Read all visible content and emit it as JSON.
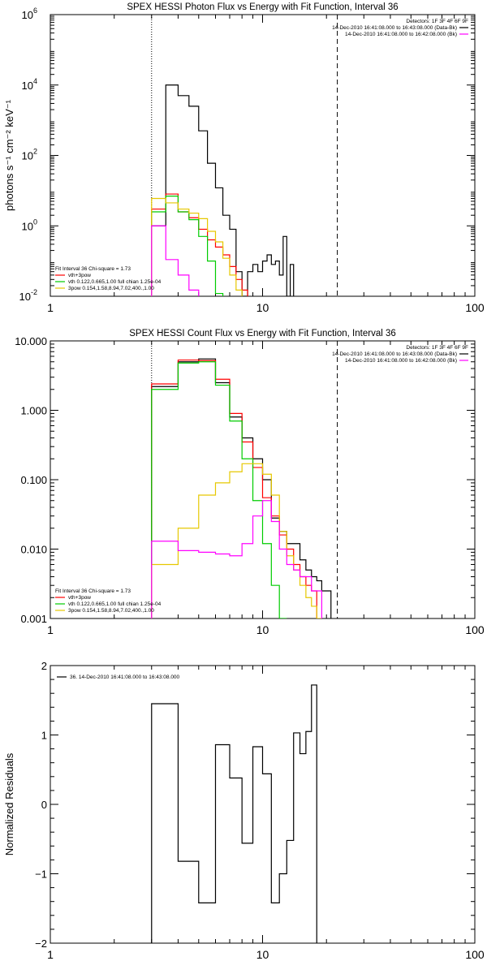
{
  "chart_data": [
    {
      "type": "line",
      "title": "SPEX HESSI Photon Flux vs Energy with Fit Function, Interval 36",
      "ylabel": "photons s⁻¹ cm⁻² keV⁻¹",
      "xscale": "log",
      "yscale": "log",
      "xlim": [
        1,
        100
      ],
      "ylim": [
        0.01,
        1000000
      ],
      "xticks": [
        {
          "v": 1,
          "label": "1"
        },
        {
          "v": 10,
          "label": "10"
        },
        {
          "v": 100,
          "label": "100"
        }
      ],
      "yticks": [
        {
          "v": 0.01,
          "label": "10",
          "sup": "-2"
        },
        {
          "v": 1,
          "label": "10",
          "sup": "0"
        },
        {
          "v": 100,
          "label": "10",
          "sup": "2"
        },
        {
          "v": 10000,
          "label": "10",
          "sup": "4"
        },
        {
          "v": 1000000,
          "label": "10",
          "sup": "6"
        }
      ],
      "vlines": [
        {
          "x": 3.0,
          "style": "dotted"
        },
        {
          "x": 22.5,
          "style": "dashed"
        }
      ],
      "info_lines": [
        {
          "text": "Detectors: 1F 3F 4F 6F 9F",
          "color": null
        },
        {
          "text": "14-Dec-2010 16:41:08.000 to 16:43:08.000 (Data-Bk)",
          "color": "#000000"
        },
        {
          "text": "14-Dec-2010 16:41:08.000 to 16:42:08.000 (Bk)",
          "color": "#ff00ff"
        }
      ],
      "legend_title": "Fit Interval 36   Chi-square = 1.73",
      "legend": [
        {
          "text": "vth+3pow",
          "color": "#ff0000"
        },
        {
          "text": "vth 0.122,0.665,1.00  full chian 1.25e-04",
          "color": "#00cc00"
        },
        {
          "text": "3pow 0.154,1.58,8.94,7.02,400.,1.00",
          "color": "#e6c800"
        }
      ],
      "bin_edges": [
        3.0,
        3.5,
        4.0,
        4.5,
        5.0,
        5.5,
        6.0,
        6.5,
        7.0,
        7.5,
        8.0,
        8.5,
        9.0,
        9.5,
        10.0,
        10.5,
        11.0,
        11.5,
        12.0,
        12.5,
        13.0,
        13.5,
        14.0,
        14.5,
        15.0,
        16.0,
        17.0,
        18.0,
        19.0,
        20.0,
        21.0,
        22.0
      ],
      "series": [
        {
          "color": "#000000",
          "values": [
            1,
            10000.0,
            5000.0,
            2500.0,
            500.0,
            60,
            12,
            2,
            0.8,
            0.05,
            0.01,
            0.05,
            0.08,
            0.05,
            0.1,
            0.15,
            0.08,
            0.1,
            0.04,
            0.5,
            0.01,
            0.08
          ]
        },
        {
          "color": "#ff0000",
          "values": [
            3.0,
            8.0,
            2.5,
            1.7,
            0.8,
            0.4,
            0.25,
            0.15,
            0.07,
            0.03,
            0.015
          ]
        },
        {
          "color": "#00cc00",
          "values": [
            2.5,
            7.0,
            2.5,
            1.5,
            0.5,
            0.1,
            0.012
          ]
        },
        {
          "color": "#e6c800",
          "values": [
            6.0,
            4.5,
            3.0,
            2.3,
            1.6,
            0.7,
            0.35,
            0.12,
            0.04,
            0.015
          ]
        },
        {
          "color": "#ff00ff",
          "values": [
            1.0,
            0.11,
            0.04,
            0.015
          ]
        }
      ]
    },
    {
      "type": "line",
      "title": "SPEX HESSI Count Flux vs Energy with Fit Function, Interval 36",
      "xscale": "log",
      "yscale": "log",
      "xlim": [
        1,
        100
      ],
      "ylim": [
        0.001,
        10
      ],
      "xticks": [
        {
          "v": 1,
          "label": "1"
        },
        {
          "v": 10,
          "label": "10"
        },
        {
          "v": 100,
          "label": "100"
        }
      ],
      "yticks": [
        {
          "v": 0.001,
          "label": "0.001"
        },
        {
          "v": 0.01,
          "label": "0.010"
        },
        {
          "v": 0.1,
          "label": "0.100"
        },
        {
          "v": 1,
          "label": "1.000"
        },
        {
          "v": 10,
          "label": "10.000"
        }
      ],
      "vlines": [
        {
          "x": 3.0,
          "style": "dotted"
        },
        {
          "x": 22.5,
          "style": "dashed"
        }
      ],
      "info_lines": [
        {
          "text": "Detectors: 1F 3F 4F 6F 9F",
          "color": null
        },
        {
          "text": "14-Dec-2010 16:41:08.000 to 16:43:08.000 (Data-Bk)",
          "color": "#000000"
        },
        {
          "text": "14-Dec-2010 16:41:08.000 to 16:42:08.000 (Bk)",
          "color": "#ff00ff"
        }
      ],
      "legend_title": "Fit Interval 36   Chi-square = 1.73",
      "legend": [
        {
          "text": "vth+3pow",
          "color": "#ff0000"
        },
        {
          "text": "vth 0.122,0.665,1.00  full chian 1.25e-04",
          "color": "#00cc00"
        },
        {
          "text": "3pow 0.154,1.58,8.94,7.02,400.,1.00",
          "color": "#e6c800"
        }
      ],
      "bin_edges": [
        3.0,
        4.0,
        5.0,
        6.0,
        7.0,
        8.0,
        9.0,
        10.0,
        11.0,
        12.0,
        13.0,
        14.0,
        15.0,
        16.0,
        17.0,
        18.0,
        19.0,
        20.0,
        21.0,
        22.0,
        23.0
      ],
      "series": [
        {
          "color": "#000000",
          "values": [
            2.2,
            5.0,
            5.5,
            2.5,
            0.8,
            0.4,
            0.2,
            0.1,
            0.028,
            0.018,
            0.012,
            0.012,
            0.007,
            0.005,
            0.004,
            0.0035,
            0.0025,
            0.0025
          ]
        },
        {
          "color": "#ff0000",
          "values": [
            2.4,
            5.3,
            5.2,
            2.8,
            0.9,
            0.35,
            0.15,
            0.055,
            0.03,
            0.016,
            0.01,
            0.006,
            0.004,
            0.003,
            0.0025
          ]
        },
        {
          "color": "#00cc00",
          "values": [
            2.0,
            4.8,
            5.0,
            2.3,
            0.7,
            0.2,
            0.05,
            0.012,
            0.003,
            0.001
          ]
        },
        {
          "color": "#e6c800",
          "values": [
            0.006,
            0.02,
            0.06,
            0.09,
            0.13,
            0.17,
            0.17,
            0.12,
            0.06,
            0.018,
            0.008,
            0.005,
            0.003,
            0.002,
            0.0015,
            0.001
          ]
        },
        {
          "color": "#ff00ff",
          "values": [
            0.013,
            0.0095,
            0.009,
            0.0085,
            0.008,
            0.012,
            0.03,
            0.05,
            0.025,
            0.01,
            0.006,
            0.005,
            0.004,
            0.004,
            0.0025,
            0.0025
          ]
        }
      ]
    },
    {
      "type": "line",
      "ylabel": "Normalized Residuals",
      "xscale": "log",
      "yscale": "linear",
      "xlim": [
        1,
        100
      ],
      "ylim": [
        -2,
        2
      ],
      "xticks": [
        {
          "v": 1,
          "label": "1"
        },
        {
          "v": 10,
          "label": "10"
        },
        {
          "v": 100,
          "label": "100"
        }
      ],
      "yticks": [
        {
          "v": -2,
          "label": "−2"
        },
        {
          "v": -1,
          "label": "−1"
        },
        {
          "v": 0,
          "label": "0"
        },
        {
          "v": 1,
          "label": "1"
        },
        {
          "v": 2,
          "label": "2"
        }
      ],
      "legend": [
        {
          "text": "36. 14-Dec-2010 16:41:08.000 to 16:43:08.000",
          "color": "#000000"
        }
      ],
      "bin_edges": [
        3.0,
        4.0,
        5.0,
        6.0,
        7.0,
        8.0,
        9.0,
        10.0,
        11.0,
        12.0,
        13.0,
        14.0,
        15.0,
        16.0,
        17.0,
        18.0,
        19.0,
        20.0,
        21.0,
        22.0,
        23.0
      ],
      "series": [
        {
          "color": "#000000",
          "values": [
            1.45,
            -0.82,
            -1.42,
            0.86,
            0.38,
            -0.56,
            0.83,
            0.44,
            -1.42,
            -1.0,
            -0.52,
            1.03,
            0.73,
            1.05,
            1.72
          ]
        }
      ]
    }
  ]
}
